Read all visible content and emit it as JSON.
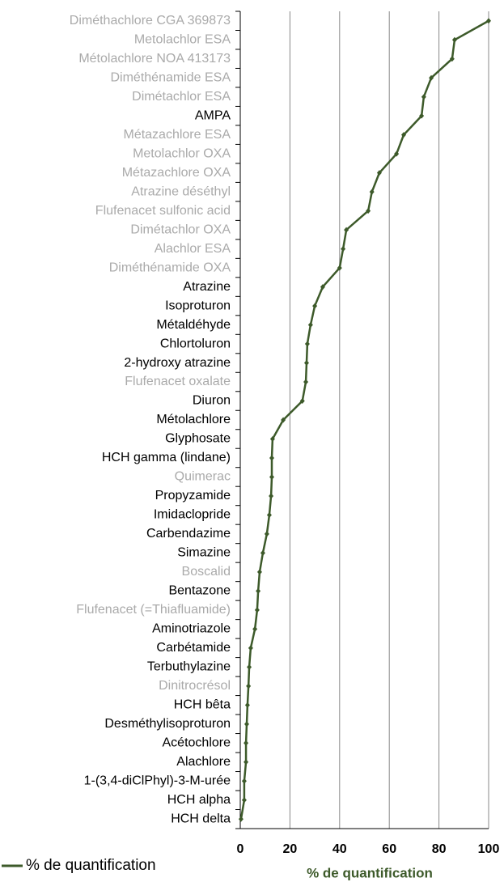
{
  "chart_data": {
    "type": "line",
    "orientation": "horizontal",
    "categories": [
      "Diméthachlore CGA 369873",
      "Metolachlor ESA",
      "Métolachlore NOA 413173",
      "Diméthénamide ESA",
      "Dimétachlor ESA",
      "AMPA",
      "Métazachlore ESA",
      "Metolachlor OXA",
      "Métazachlore OXA",
      "Atrazine déséthyl",
      "Flufenacet sulfonic acid",
      "Dimétachlor OXA",
      "Alachlor ESA",
      "Diméthénamide OXA",
      "Atrazine",
      "Isoproturon",
      "Métaldéhyde",
      "Chlortoluron",
      "2-hydroxy atrazine",
      "Flufenacet oxalate",
      "Diuron",
      "Métolachlore",
      "Glyphosate",
      "HCH gamma (lindane)",
      "Quimerac",
      "Propyzamide",
      "Imidaclopride",
      "Carbendazime",
      "Simazine",
      "Boscalid",
      "Bentazone",
      "Flufenacet (=Thiafluamide)",
      "Aminotriazole",
      "Carbétamide",
      "Terbuthylazine",
      "Dinitrocrésol",
      "HCH bêta",
      "Desméthylisoproturon",
      "Acétochlore",
      "Alachlore",
      "1-(3,4-diClPhyl)-3-M-urée",
      "HCH alpha",
      "HCH delta"
    ],
    "category_colors": [
      "#aaa",
      "#aaa",
      "#aaa",
      "#aaa",
      "#aaa",
      "#000",
      "#aaa",
      "#aaa",
      "#aaa",
      "#aaa",
      "#aaa",
      "#aaa",
      "#aaa",
      "#aaa",
      "#000",
      "#000",
      "#000",
      "#000",
      "#000",
      "#aaa",
      "#000",
      "#000",
      "#000",
      "#000",
      "#aaa",
      "#000",
      "#000",
      "#000",
      "#000",
      "#aaa",
      "#000",
      "#aaa",
      "#000",
      "#000",
      "#000",
      "#aaa",
      "#000",
      "#000",
      "#000",
      "#000",
      "#000",
      "#000",
      "#000"
    ],
    "series": [
      {
        "name": "% de quantification",
        "color": "#3d5a2a",
        "values": [
          100,
          86.3,
          85.3,
          76.9,
          73.9,
          73,
          65.8,
          62.9,
          56,
          53,
          51.5,
          42.7,
          41.4,
          40,
          33.2,
          30,
          28.3,
          27,
          26.7,
          26.4,
          25,
          17.3,
          13,
          12.7,
          12.7,
          12.4,
          11.7,
          10.7,
          9.1,
          7.8,
          7.2,
          6.8,
          5.9,
          4.2,
          3.6,
          3.3,
          2.9,
          2.6,
          2.3,
          2.3,
          1.6,
          1.6,
          0.3
        ]
      }
    ],
    "x_label": "% de quantification",
    "xlim": [
      0,
      100
    ],
    "xticks": [
      0,
      20,
      40,
      60,
      80,
      100
    ],
    "grid": true
  }
}
